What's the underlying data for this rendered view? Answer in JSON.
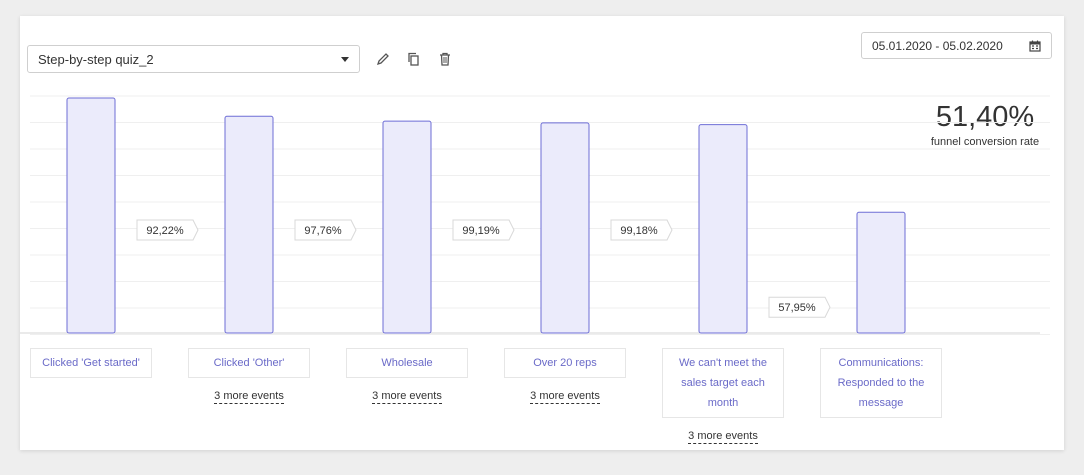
{
  "quiz_select": {
    "value": "Step-by-step quiz_2"
  },
  "tools": {
    "edit_icon": "pencil-icon",
    "copy_icon": "copy-icon",
    "delete_icon": "trash-icon"
  },
  "date_range": {
    "value": "05.01.2020 - 05.02.2020",
    "icon": "calendar-icon"
  },
  "conversion": {
    "value": "51,40%",
    "label": "funnel conversion rate"
  },
  "stages": [
    {
      "label": "Clicked 'Get started'",
      "more": ""
    },
    {
      "label": "Clicked 'Other'",
      "more": "3 more events"
    },
    {
      "label": "Wholesale",
      "more": "3 more events"
    },
    {
      "label": "Over 20 reps",
      "more": "3 more events"
    },
    {
      "label": "We can't meet the sales target each month",
      "more": "3 more events"
    },
    {
      "label": "Communications: Responded to the message",
      "more": ""
    }
  ],
  "chart_data": {
    "type": "bar",
    "categories": [
      "Clicked 'Get started'",
      "Clicked 'Other'",
      "Wholesale",
      "Over 20 reps",
      "We can't meet the sales target each month",
      "Communications: Responded to the message"
    ],
    "values": [
      100,
      92.22,
      90.15,
      89.42,
      88.68,
      51.4
    ],
    "step_conversions": [
      "92,22%",
      "97,76%",
      "99,19%",
      "99,18%",
      "57,95%"
    ],
    "ylim": [
      0,
      100
    ],
    "grid": true,
    "colors": {
      "bar_fill": "#ebebfb",
      "bar_stroke": "#6e6ed6",
      "grid": "#efefef",
      "label_text": "#6a6ac8"
    }
  }
}
